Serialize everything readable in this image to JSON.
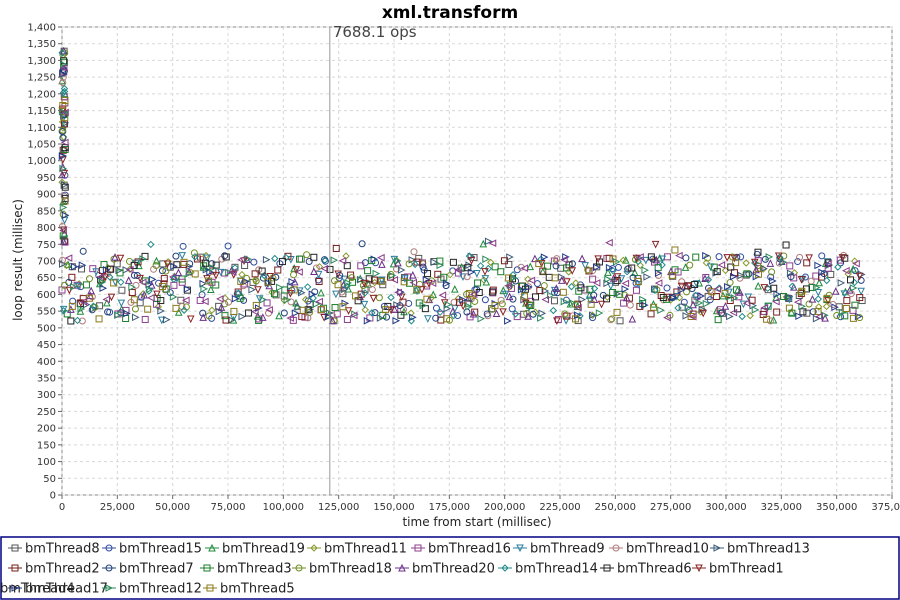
{
  "chart_data": {
    "type": "scatter",
    "title": "xml.transform",
    "xlabel": "time from start (millisec)",
    "ylabel": "loop result (millisec)",
    "xlim": [
      0,
      375000
    ],
    "ylim": [
      0,
      1400
    ],
    "x_ticks": [
      "0",
      "25,000",
      "50,000",
      "75,000",
      "100,000",
      "125,000",
      "150,000",
      "175,000",
      "200,000",
      "225,000",
      "250,000",
      "275,000",
      "300,000",
      "325,000",
      "350,000",
      "375,000"
    ],
    "y_ticks": [
      "0",
      "50",
      "100",
      "150",
      "200",
      "250",
      "300",
      "350",
      "400",
      "450",
      "500",
      "550",
      "600",
      "650",
      "700",
      "750",
      "800",
      "850",
      "900",
      "950",
      "1,000",
      "1,050",
      "1,100",
      "1,150",
      "1,200",
      "1,250",
      "1,300",
      "1,350",
      "1,400"
    ],
    "grid": true,
    "legend_position": "bottom",
    "annotation": {
      "x": 121000,
      "label": "7688.1 ops"
    },
    "data_range": {
      "x": [
        0,
        362000
      ],
      "y_typical": [
        520,
        760
      ],
      "y_startup_max": 1330
    },
    "series": [
      {
        "name": "bmThread8",
        "marker": "square",
        "color": "#555555"
      },
      {
        "name": "bmThread15",
        "marker": "circle",
        "color": "#2e4c9e"
      },
      {
        "name": "bmThread19",
        "marker": "triangle-up",
        "color": "#1e8c3a"
      },
      {
        "name": "bmThread11",
        "marker": "diamond",
        "color": "#8a9a2a"
      },
      {
        "name": "bmThread16",
        "marker": "square",
        "color": "#8e3f8e"
      },
      {
        "name": "bmThread9",
        "marker": "triangle-down",
        "color": "#2a7f9e"
      },
      {
        "name": "bmThread10",
        "marker": "circle",
        "color": "#b07a7a"
      },
      {
        "name": "bmThread13",
        "marker": "triangle-right",
        "color": "#3c5a78"
      },
      {
        "name": "bmThread2",
        "marker": "square",
        "color": "#7a1f1f"
      },
      {
        "name": "bmThread7",
        "marker": "circle",
        "color": "#1f3f7a"
      },
      {
        "name": "bmThread3",
        "marker": "square",
        "color": "#1a7f2a"
      },
      {
        "name": "bmThread18",
        "marker": "circle",
        "color": "#6e8e1e"
      },
      {
        "name": "bmThread20",
        "marker": "triangle-up",
        "color": "#6a2f8a"
      },
      {
        "name": "bmThread14",
        "marker": "diamond",
        "color": "#1f8a8a"
      },
      {
        "name": "bmThread6",
        "marker": "square",
        "color": "#222222"
      },
      {
        "name": "bmThread1",
        "marker": "triangle-down",
        "color": "#8a2020"
      },
      {
        "name": "bmThread17",
        "marker": "triangle-right",
        "color": "#203a8a"
      },
      {
        "name": "bmThread12",
        "marker": "triangle-right",
        "color": "#2a8a5a"
      },
      {
        "name": "bmThread5",
        "marker": "square",
        "color": "#8a7a1a"
      },
      {
        "name": "bmThread4",
        "marker": "triangle-left",
        "color": "#8a3a8a"
      }
    ]
  }
}
